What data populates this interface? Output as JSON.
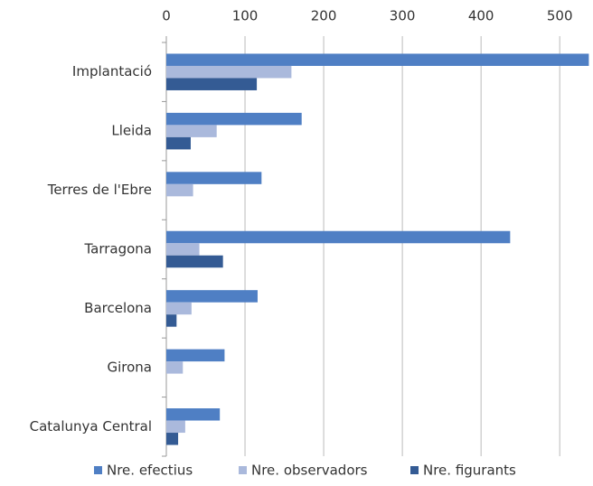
{
  "chart_data": {
    "type": "bar",
    "orientation": "horizontal",
    "categories": [
      "Implantació",
      "Lleida",
      "Terres de l'Ebre",
      "Tarragona",
      "Barcelona",
      "Girona",
      "Catalunya Central"
    ],
    "series": [
      {
        "name": "Nre. efectius",
        "color": "#4f7fc4",
        "values": [
          537,
          172,
          121,
          437,
          116,
          74,
          68
        ]
      },
      {
        "name": "Nre. observadors",
        "color": "#aab9dc",
        "values": [
          159,
          64,
          34,
          42,
          32,
          21,
          24
        ]
      },
      {
        "name": "Nre. figurants",
        "color": "#345b94",
        "values": [
          115,
          31,
          0,
          72,
          13,
          0,
          15
        ]
      }
    ],
    "xlim": [
      0,
      540
    ],
    "xticks": [
      0,
      100,
      200,
      300,
      400,
      500
    ],
    "grid": true,
    "legend": "bottom"
  }
}
